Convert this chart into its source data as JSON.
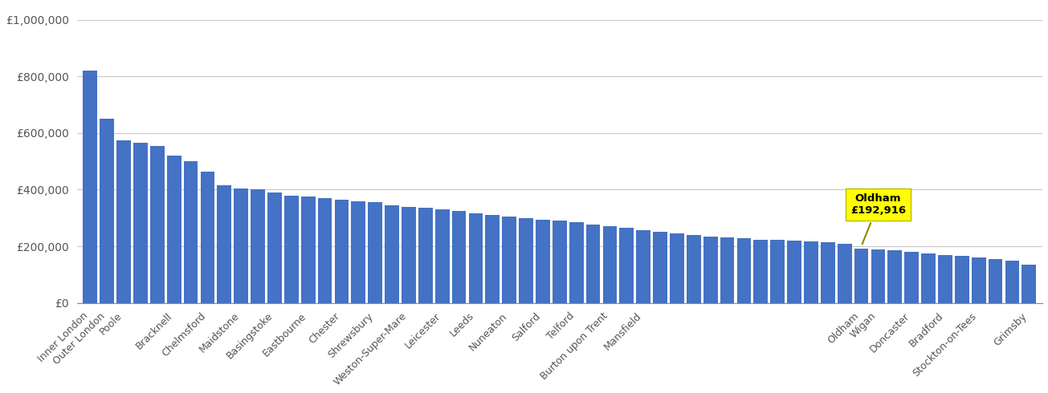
{
  "bar_color": "#4472C4",
  "background_color": "#FFFFFF",
  "grid_color": "#C8C8C8",
  "highlight_color": "#FFFF00",
  "highlight_index": 46,
  "highlight_label": "Oldham",
  "highlight_value": "£192,916",
  "yticks": [
    0,
    200000,
    400000,
    600000,
    800000,
    1000000
  ],
  "ytick_labels": [
    "£0",
    "£200,000",
    "£400,000",
    "£600,000",
    "£800,000",
    "£1,000,000"
  ],
  "bar_values": [
    820000,
    650000,
    575000,
    565000,
    555000,
    520000,
    500000,
    465000,
    415000,
    405000,
    400000,
    390000,
    380000,
    375000,
    370000,
    365000,
    360000,
    355000,
    345000,
    340000,
    335000,
    330000,
    325000,
    315000,
    310000,
    305000,
    300000,
    295000,
    290000,
    285000,
    278000,
    272000,
    265000,
    258000,
    250000,
    245000,
    240000,
    235000,
    230000,
    228000,
    224000,
    222000,
    220000,
    218000,
    215000,
    210000,
    192916,
    190000,
    185000,
    180000,
    175000,
    170000,
    165000,
    160000,
    155000,
    150000,
    135000
  ],
  "visible_label_indices": [
    0,
    1,
    2,
    5,
    7,
    9,
    11,
    13,
    15,
    17,
    19,
    21,
    23,
    25,
    27,
    29,
    31,
    33,
    46,
    47,
    49,
    51,
    53,
    56
  ],
  "visible_labels": [
    "Inner London",
    "Outer London",
    "Poole",
    "Bracknell",
    "Chelmsford",
    "Maidstone",
    "Basingstoke",
    "Eastbourne",
    "Chester",
    "Shrewsbury",
    "Weston-Super-Mare",
    "Leicester",
    "Leeds",
    "Nuneaton",
    "Salford",
    "Telford",
    "Burton upon Trent",
    "Mansfield",
    "Oldham",
    "Wigan",
    "Doncaster",
    "Bradford",
    "Stockton-on-Tees",
    "Grimsby"
  ]
}
